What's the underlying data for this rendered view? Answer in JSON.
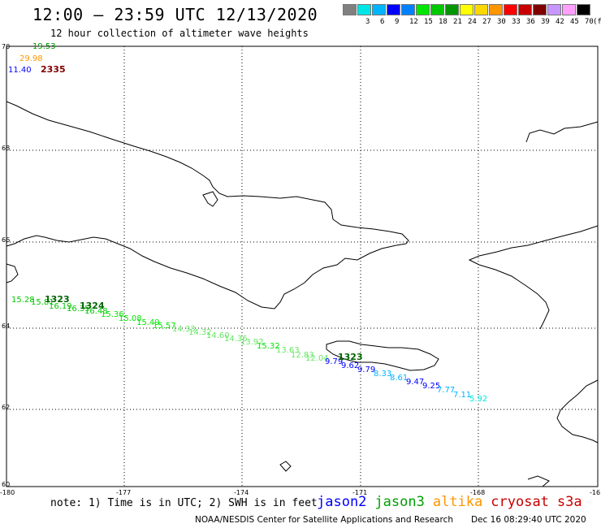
{
  "title": "12:00 – 23:59 UTC 12/13/2020",
  "subtitle": "12 hour collection of altimeter wave heights",
  "legend": {
    "unit": "(ft)",
    "bins": [
      {
        "label": "",
        "color": "#808080"
      },
      {
        "label": "3",
        "color": "#00e6e6"
      },
      {
        "label": "6",
        "color": "#00b4ff"
      },
      {
        "label": "9",
        "color": "#0000ff"
      },
      {
        "label": "12",
        "color": "#0080ff"
      },
      {
        "label": "15",
        "color": "#00e600"
      },
      {
        "label": "18",
        "color": "#00c800"
      },
      {
        "label": "21",
        "color": "#009600"
      },
      {
        "label": "24",
        "color": "#ffff00"
      },
      {
        "label": "27",
        "color": "#ffd700"
      },
      {
        "label": "30",
        "color": "#ff9600"
      },
      {
        "label": "33",
        "color": "#ff0000"
      },
      {
        "label": "36",
        "color": "#c80000"
      },
      {
        "label": "39",
        "color": "#800000"
      },
      {
        "label": "42",
        "color": "#c896ff"
      },
      {
        "label": "45",
        "color": "#ffa0ff"
      },
      {
        "label": "70",
        "color": "#000000"
      }
    ]
  },
  "axes": {
    "lat_labels": [
      "70",
      "68",
      "66",
      "64",
      "62",
      "60"
    ],
    "lon_labels": [
      "-180",
      "-177",
      "-174",
      "-171",
      "-168",
      "-16"
    ]
  },
  "corner_values": [
    {
      "text": "19.53",
      "color": "#009600"
    },
    {
      "text": "29.98",
      "color": "#ff9600"
    },
    {
      "text": "11.40",
      "color": "#0000ff"
    },
    {
      "text": "2335",
      "color": "#800000"
    }
  ],
  "track": {
    "times": [
      "1323",
      "1324",
      "1323"
    ],
    "points": [
      {
        "text": "15.28",
        "color": "#00c800"
      },
      {
        "text": "15.81",
        "color": "#00c800"
      },
      {
        "text": "16.19",
        "color": "#00c800"
      },
      {
        "text": "16.35",
        "color": "#00c800"
      },
      {
        "text": "16.48",
        "color": "#00c800"
      },
      {
        "text": "15.36",
        "color": "#00e600"
      },
      {
        "text": "15.08",
        "color": "#00e600"
      },
      {
        "text": "15.49",
        "color": "#00e600"
      },
      {
        "text": "15.57",
        "color": "#00e600"
      },
      {
        "text": "14.33",
        "color": "#66e666"
      },
      {
        "text": "14.32",
        "color": "#66e666"
      },
      {
        "text": "14.60",
        "color": "#66e666"
      },
      {
        "text": "14.36",
        "color": "#66e666"
      },
      {
        "text": "13.92",
        "color": "#66e666"
      },
      {
        "text": "15.32",
        "color": "#00e600"
      },
      {
        "text": "13.63",
        "color": "#66e666"
      },
      {
        "text": "12.83",
        "color": "#66e666"
      },
      {
        "text": "12.04",
        "color": "#66e666"
      },
      {
        "text": "9.79",
        "color": "#0000ff"
      },
      {
        "text": "9.62",
        "color": "#0000ff"
      },
      {
        "text": "9.79",
        "color": "#0000ff"
      },
      {
        "text": "8.33",
        "color": "#00b4ff"
      },
      {
        "text": "8.61",
        "color": "#00b4ff"
      },
      {
        "text": "9.47",
        "color": "#0000ff"
      },
      {
        "text": "9.25",
        "color": "#0000ff"
      },
      {
        "text": "7.77",
        "color": "#00b4ff"
      },
      {
        "text": "7.11",
        "color": "#00b4ff"
      },
      {
        "text": "5.92",
        "color": "#00e6e6"
      }
    ]
  },
  "footer": {
    "note": "note: 1) Time is in UTC; 2) SWH is in feet",
    "satellites": [
      {
        "name": "jason2",
        "color": "#0000ff"
      },
      {
        "name": "jason3",
        "color": "#00a000"
      },
      {
        "name": "altika",
        "color": "#ff9600"
      },
      {
        "name": "cryosat",
        "color": "#c80000"
      },
      {
        "name": "s3a",
        "color": "#c80000"
      }
    ],
    "credit": "NOAA/NESDIS Center for Satellite Applications and Research",
    "generated": "Dec 16 08:29:40 UTC 2020"
  }
}
